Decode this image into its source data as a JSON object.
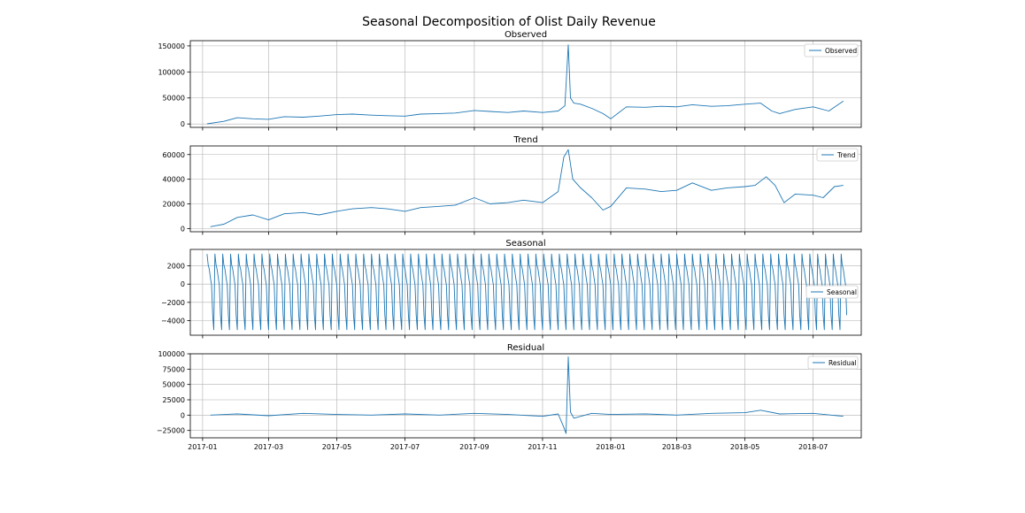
{
  "figure_title": "Seasonal Decomposition of Olist Daily Revenue",
  "x_tick_labels": [
    "2017-01",
    "2017-03",
    "2017-05",
    "2017-07",
    "2017-09",
    "2017-11",
    "2018-01",
    "2018-03",
    "2018-05",
    "2018-07"
  ],
  "colors": {
    "line": "#1f77b4",
    "grid": "#b0b0b0",
    "axes": "#000000"
  },
  "chart_data": [
    {
      "type": "line",
      "title": "Observed",
      "legend": "Observed",
      "legend_position": "upper right",
      "grid": true,
      "x_range": [
        "2016-12-21",
        "2018-08-13"
      ],
      "ylim": [
        -6500,
        160000
      ],
      "y_ticks": [
        0,
        50000,
        100000,
        150000
      ],
      "y_tick_labels": [
        "0",
        "50000",
        "100000",
        "150000"
      ],
      "series": [
        {
          "name": "Observed",
          "x": [
            "2017-01-05",
            "2017-01-20",
            "2017-02-01",
            "2017-02-15",
            "2017-03-01",
            "2017-03-15",
            "2017-04-01",
            "2017-04-15",
            "2017-05-01",
            "2017-05-15",
            "2017-06-01",
            "2017-06-15",
            "2017-07-01",
            "2017-07-15",
            "2017-08-01",
            "2017-08-15",
            "2017-09-01",
            "2017-09-15",
            "2017-10-01",
            "2017-10-15",
            "2017-11-01",
            "2017-11-15",
            "2017-11-21",
            "2017-11-24",
            "2017-11-26",
            "2017-11-29",
            "2017-12-05",
            "2017-12-15",
            "2017-12-25",
            "2018-01-01",
            "2018-01-15",
            "2018-02-01",
            "2018-02-15",
            "2018-03-01",
            "2018-03-15",
            "2018-04-01",
            "2018-04-15",
            "2018-05-01",
            "2018-05-15",
            "2018-05-25",
            "2018-06-01",
            "2018-06-15",
            "2018-07-01",
            "2018-07-15",
            "2018-07-28"
          ],
          "y": [
            300,
            5000,
            12000,
            10000,
            9000,
            14000,
            13000,
            15000,
            18000,
            19000,
            17000,
            16000,
            15000,
            19000,
            20000,
            21000,
            26000,
            24000,
            22000,
            25000,
            22000,
            25000,
            35000,
            152000,
            50000,
            40000,
            38000,
            30000,
            20000,
            10000,
            33000,
            32000,
            34000,
            33000,
            37000,
            34000,
            35000,
            38000,
            40000,
            25000,
            20000,
            28000,
            33000,
            25000,
            44000
          ]
        }
      ]
    },
    {
      "type": "line",
      "title": "Trend",
      "legend": "Trend",
      "legend_position": "upper right",
      "grid": true,
      "x_range": [
        "2016-12-21",
        "2018-08-13"
      ],
      "ylim": [
        -2600,
        67000
      ],
      "y_ticks": [
        0,
        20000,
        40000,
        60000
      ],
      "y_tick_labels": [
        "0",
        "20000",
        "40000",
        "60000"
      ],
      "series": [
        {
          "name": "Trend",
          "x": [
            "2017-01-08",
            "2017-01-20",
            "2017-02-01",
            "2017-02-15",
            "2017-03-01",
            "2017-03-15",
            "2017-04-01",
            "2017-04-15",
            "2017-05-01",
            "2017-05-15",
            "2017-06-01",
            "2017-06-15",
            "2017-07-01",
            "2017-07-15",
            "2017-08-01",
            "2017-08-15",
            "2017-09-01",
            "2017-09-15",
            "2017-10-01",
            "2017-10-15",
            "2017-11-01",
            "2017-11-15",
            "2017-11-20",
            "2017-11-24",
            "2017-11-28",
            "2017-12-05",
            "2017-12-15",
            "2017-12-25",
            "2018-01-01",
            "2018-01-15",
            "2018-02-01",
            "2018-02-15",
            "2018-03-01",
            "2018-03-15",
            "2018-04-01",
            "2018-04-15",
            "2018-05-01",
            "2018-05-10",
            "2018-05-20",
            "2018-05-28",
            "2018-06-05",
            "2018-06-15",
            "2018-07-01",
            "2018-07-10",
            "2018-07-20",
            "2018-07-28"
          ],
          "y": [
            1500,
            3500,
            9000,
            11000,
            7000,
            12000,
            13000,
            11000,
            14000,
            16000,
            17000,
            16000,
            14000,
            17000,
            18000,
            19000,
            25000,
            20000,
            21000,
            23000,
            21000,
            30000,
            58000,
            64000,
            40000,
            33000,
            25000,
            15000,
            18000,
            33000,
            32000,
            30000,
            31000,
            37000,
            31000,
            33000,
            34000,
            35000,
            42000,
            35000,
            21000,
            28000,
            27000,
            25000,
            34000,
            35000
          ]
        }
      ]
    },
    {
      "type": "line",
      "title": "Seasonal",
      "legend": "Seasonal",
      "legend_position": "center right",
      "grid": true,
      "x_range": [
        "2016-12-21",
        "2018-08-13"
      ],
      "ylim": [
        -5600,
        3800
      ],
      "y_ticks": [
        -4000,
        -2000,
        0,
        2000
      ],
      "y_tick_labels": [
        "−4000",
        "−2000",
        "0",
        "2000"
      ],
      "series": [
        {
          "name": "Seasonal",
          "period_days": 7,
          "start": "2017-01-05",
          "end": "2018-07-31",
          "weekly_pattern": [
            3300,
            2100,
            1600,
            700,
            -100,
            -3400,
            -5000
          ]
        }
      ]
    },
    {
      "type": "line",
      "title": "Residual",
      "legend": "Residual",
      "legend_position": "upper right",
      "grid": true,
      "x_range": [
        "2016-12-21",
        "2018-08-13"
      ],
      "ylim": [
        -37000,
        100000
      ],
      "y_ticks": [
        -25000,
        0,
        25000,
        50000,
        75000,
        100000
      ],
      "y_tick_labels": [
        "−25000",
        "0",
        "25000",
        "50000",
        "75000",
        "100000"
      ],
      "series": [
        {
          "name": "Residual",
          "x": [
            "2017-01-08",
            "2017-02-01",
            "2017-03-01",
            "2017-04-01",
            "2017-05-01",
            "2017-06-01",
            "2017-07-01",
            "2017-08-01",
            "2017-09-01",
            "2017-10-01",
            "2017-11-01",
            "2017-11-15",
            "2017-11-20",
            "2017-11-22",
            "2017-11-24",
            "2017-11-26",
            "2017-11-29",
            "2017-12-15",
            "2018-01-01",
            "2018-02-01",
            "2018-03-01",
            "2018-04-01",
            "2018-05-01",
            "2018-05-15",
            "2018-06-01",
            "2018-07-01",
            "2018-07-28"
          ],
          "y": [
            0,
            2000,
            -1000,
            3000,
            1000,
            0,
            2000,
            0,
            3000,
            1000,
            -2000,
            2000,
            -20000,
            -30000,
            95000,
            5000,
            -5000,
            3000,
            1000,
            2000,
            0,
            3000,
            4000,
            8000,
            2000,
            3000,
            -2000
          ]
        }
      ]
    }
  ]
}
